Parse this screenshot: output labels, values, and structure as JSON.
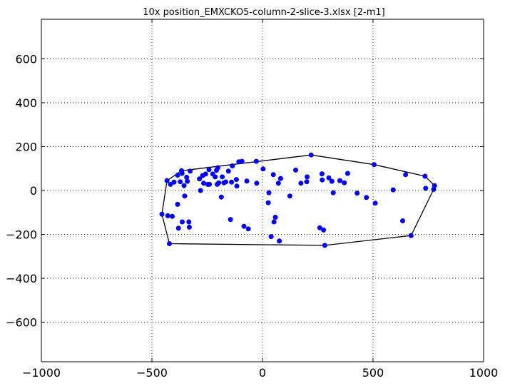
{
  "chart_data": {
    "type": "scatter",
    "title": "10x position_EMXCKO5-column-2-slice-3.xlsx   [2-m1]",
    "xlabel": "",
    "ylabel": "",
    "xlim": [
      -1000,
      1000
    ],
    "ylim": [
      -780,
      780
    ],
    "x_ticks": [
      -1000,
      -500,
      0,
      500,
      1000
    ],
    "y_ticks": [
      -600,
      -400,
      -200,
      0,
      200,
      400,
      600
    ],
    "x_tick_labels": [
      "−1000",
      "−500",
      "0",
      "500",
      "1000"
    ],
    "y_tick_labels": [
      "−600",
      "−400",
      "−200",
      "0",
      "200",
      "400",
      "600"
    ],
    "grid": true,
    "colors": {
      "points": "#0000ff",
      "hull": "#000000"
    },
    "series": [
      {
        "marker": "circle",
        "points": [
          [
            -455,
            -108
          ],
          [
            -432,
            45
          ],
          [
            -428,
            -115
          ],
          [
            -421,
            -242
          ],
          [
            -416,
            28
          ],
          [
            -408,
            -118
          ],
          [
            -400,
            38
          ],
          [
            -384,
            70
          ],
          [
            -384,
            -63
          ],
          [
            -380,
            -172
          ],
          [
            -372,
            40
          ],
          [
            -366,
            90
          ],
          [
            -364,
            78
          ],
          [
            -363,
            -143
          ],
          [
            -355,
            22
          ],
          [
            -352,
            -25
          ],
          [
            -343,
            60
          ],
          [
            -340,
            42
          ],
          [
            -333,
            -143
          ],
          [
            -331,
            -167
          ],
          [
            -327,
            88
          ],
          [
            -285,
            53
          ],
          [
            -280,
            0
          ],
          [
            -271,
            68
          ],
          [
            -266,
            33
          ],
          [
            -257,
            75
          ],
          [
            -247,
            28
          ],
          [
            -242,
            95
          ],
          [
            -240,
            28
          ],
          [
            -225,
            75
          ],
          [
            -214,
            62
          ],
          [
            -208,
            92
          ],
          [
            -205,
            28
          ],
          [
            -202,
            104
          ],
          [
            -198,
            35
          ],
          [
            -186,
            -30
          ],
          [
            -182,
            62
          ],
          [
            -175,
            35
          ],
          [
            -166,
            39
          ],
          [
            -154,
            88
          ],
          [
            -145,
            -132
          ],
          [
            -140,
            38
          ],
          [
            -136,
            112
          ],
          [
            -118,
            50
          ],
          [
            -116,
            20
          ],
          [
            -107,
            131
          ],
          [
            -93,
            133
          ],
          [
            -84,
            -163
          ],
          [
            -71,
            43
          ],
          [
            -64,
            -175
          ],
          [
            -28,
            133
          ],
          [
            -26,
            33
          ],
          [
            3,
            98
          ],
          [
            26,
            -56
          ],
          [
            29,
            -10
          ],
          [
            39,
            -210
          ],
          [
            49,
            72
          ],
          [
            52,
            -143
          ],
          [
            58,
            -122
          ],
          [
            72,
            33
          ],
          [
            76,
            -230
          ],
          [
            82,
            55
          ],
          [
            124,
            -25
          ],
          [
            150,
            93
          ],
          [
            174,
            33
          ],
          [
            200,
            40
          ],
          [
            202,
            62
          ],
          [
            220,
            162
          ],
          [
            259,
            -170
          ],
          [
            269,
            76
          ],
          [
            270,
            48
          ],
          [
            276,
            -180
          ],
          [
            282,
            -250
          ],
          [
            300,
            58
          ],
          [
            314,
            42
          ],
          [
            320,
            -10
          ],
          [
            350,
            45
          ],
          [
            370,
            35
          ],
          [
            385,
            78
          ],
          [
            428,
            -12
          ],
          [
            470,
            -32
          ],
          [
            505,
            118
          ],
          [
            510,
            -58
          ],
          [
            591,
            3
          ],
          [
            634,
            -138
          ],
          [
            647,
            72
          ],
          [
            672,
            -205
          ],
          [
            735,
            65
          ],
          [
            738,
            10
          ],
          [
            774,
            5
          ],
          [
            778,
            22
          ]
        ]
      }
    ],
    "hull": [
      [
        -455,
        -108
      ],
      [
        -432,
        45
      ],
      [
        -366,
        90
      ],
      [
        220,
        162
      ],
      [
        505,
        118
      ],
      [
        735,
        65
      ],
      [
        778,
        22
      ],
      [
        774,
        5
      ],
      [
        672,
        -205
      ],
      [
        282,
        -250
      ],
      [
        -421,
        -242
      ],
      [
        -455,
        -108
      ]
    ]
  }
}
